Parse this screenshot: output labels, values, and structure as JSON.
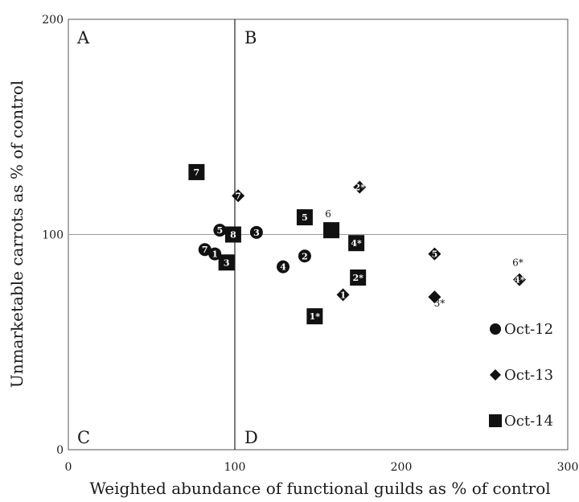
{
  "chart_data": {
    "type": "scatter",
    "xlabel": "Weighted abundance of functional guilds as % of control",
    "ylabel": "Unmarketable carrots as % of control",
    "xlim": [
      0,
      300
    ],
    "ylim": [
      0,
      200
    ],
    "xticks": [
      "0",
      "100",
      "200",
      "300"
    ],
    "yticks": [
      "0",
      "100",
      "200"
    ],
    "reference_lines": {
      "x": 100,
      "y": 100
    },
    "quadrants": [
      {
        "label": "A",
        "pos": "top-left"
      },
      {
        "label": "B",
        "pos": "top-right"
      },
      {
        "label": "C",
        "pos": "bottom-left"
      },
      {
        "label": "D",
        "pos": "bottom-right"
      }
    ],
    "grid": false,
    "legend": {
      "placement": "bottom-right"
    },
    "series": [
      {
        "name": "Oct-12",
        "marker": "circle",
        "points": [
          {
            "label": "7",
            "x": 82,
            "y": 93
          },
          {
            "label": "1",
            "x": 88,
            "y": 91
          },
          {
            "label": "5",
            "x": 91,
            "y": 102
          },
          {
            "label": "3",
            "x": 113,
            "y": 101
          },
          {
            "label": "4",
            "x": 129,
            "y": 85
          },
          {
            "label": "2",
            "x": 142,
            "y": 90
          }
        ]
      },
      {
        "name": "Oct-13",
        "marker": "diamond",
        "points": [
          {
            "label": "7",
            "x": 102,
            "y": 118
          },
          {
            "label": "2*",
            "x": 175,
            "y": 122
          },
          {
            "label": "1",
            "x": 165,
            "y": 72
          },
          {
            "label": "5",
            "x": 220,
            "y": 91
          },
          {
            "label": "3*",
            "x": 220,
            "y": 71
          },
          {
            "label": "4*",
            "x": 271,
            "y": 79
          },
          {
            "label": "6*",
            "x": 271,
            "y": 79
          }
        ]
      },
      {
        "name": "Oct-14",
        "marker": "square",
        "points": [
          {
            "label": "7",
            "x": 77,
            "y": 129
          },
          {
            "label": "8",
            "x": 99,
            "y": 100
          },
          {
            "label": "3",
            "x": 95,
            "y": 87
          },
          {
            "label": "5",
            "x": 142,
            "y": 108
          },
          {
            "label": "6",
            "x": 158,
            "y": 102
          },
          {
            "label": "4*",
            "x": 173,
            "y": 96
          },
          {
            "label": "2*",
            "x": 174,
            "y": 80
          },
          {
            "label": "1*",
            "x": 148,
            "y": 62
          }
        ]
      }
    ]
  }
}
